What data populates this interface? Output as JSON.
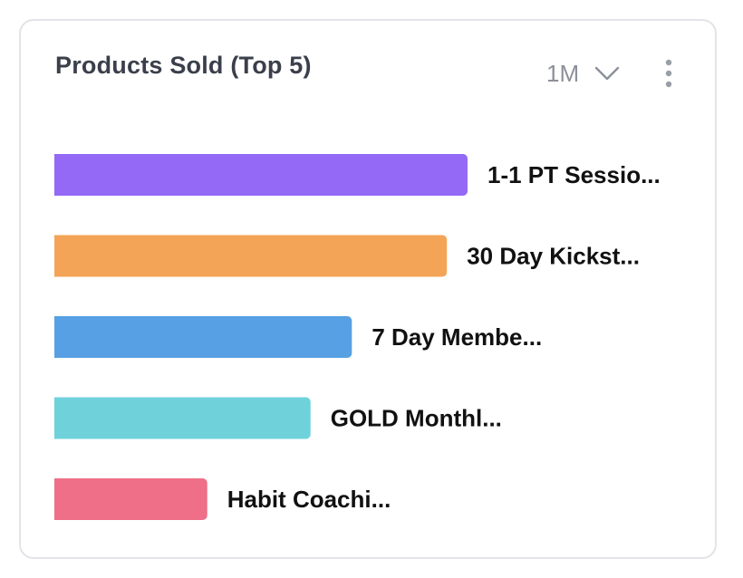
{
  "card": {
    "title": "Products Sold (Top 5)",
    "range_label": "1M",
    "chevron_icon": "chevron-down-icon",
    "menu_icon": "more-vertical-icon"
  },
  "chart_data": {
    "type": "bar",
    "orientation": "horizontal",
    "categories": [
      "1-1 PT Sessio...",
      "30 Day Kickst...",
      "7 Day Membe...",
      "GOLD Monthl...",
      "Habit Coachi..."
    ],
    "values": [
      100,
      95,
      72,
      62,
      37
    ],
    "colors": [
      "#9369f5",
      "#f3a456",
      "#57a0e3",
      "#6fd2db",
      "#ee6f87"
    ],
    "xlim": [
      0,
      100
    ],
    "grid": false,
    "legend": "none"
  }
}
